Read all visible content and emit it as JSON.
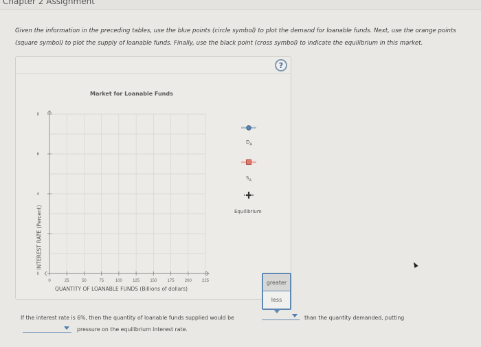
{
  "page": {
    "breadcrumb": "Chapter 2 Assignment"
  },
  "instructions": "Given the information in the preceding tables, use the blue points (circle symbol) to plot the demand for loanable funds. Next, use the orange points (square symbol) to plot the supply of loanable funds. Finally, use the black point (cross symbol) to indicate the equilibrium in this market.",
  "help_button": {
    "label": "?"
  },
  "chart_data": {
    "type": "scatter",
    "title": "Market for Loanable Funds",
    "xlabel": "QUANTITY OF LOANABLE FUNDS (Billions of dollars)",
    "ylabel": "INTEREST RATE (Percent)",
    "xlim": [
      0,
      225
    ],
    "ylim": [
      0,
      8
    ],
    "x_ticks": [
      "0",
      "25",
      "50",
      "75",
      "100",
      "125",
      "150",
      "175",
      "200",
      "225"
    ],
    "y_ticks": [
      "0",
      "2",
      "4",
      "6",
      "8"
    ],
    "grid": true,
    "series": [
      {
        "name": "D_A",
        "marker": "circle",
        "color": "#3d6fa8",
        "points": []
      },
      {
        "name": "S_A",
        "marker": "square",
        "color": "#d9685a",
        "points": []
      },
      {
        "name": "Equilibrium",
        "marker": "cross",
        "color": "#222222",
        "points": []
      }
    ],
    "legend_position": "right"
  },
  "legend": {
    "demand_label": "D",
    "demand_sub": "A",
    "supply_label": "S",
    "supply_sub": "A",
    "equilibrium_label": "Equilibrium"
  },
  "popup": {
    "options": [
      "greater",
      "less"
    ],
    "hovered": "greater"
  },
  "question": {
    "part1": "If the interest rate is 6%, then the quantity of loanable funds supplied would be",
    "part2": "than the quantity demanded, putting",
    "part3": "pressure on the equilibrium interest rate.",
    "dropdown1_value": "",
    "dropdown2_value": ""
  }
}
